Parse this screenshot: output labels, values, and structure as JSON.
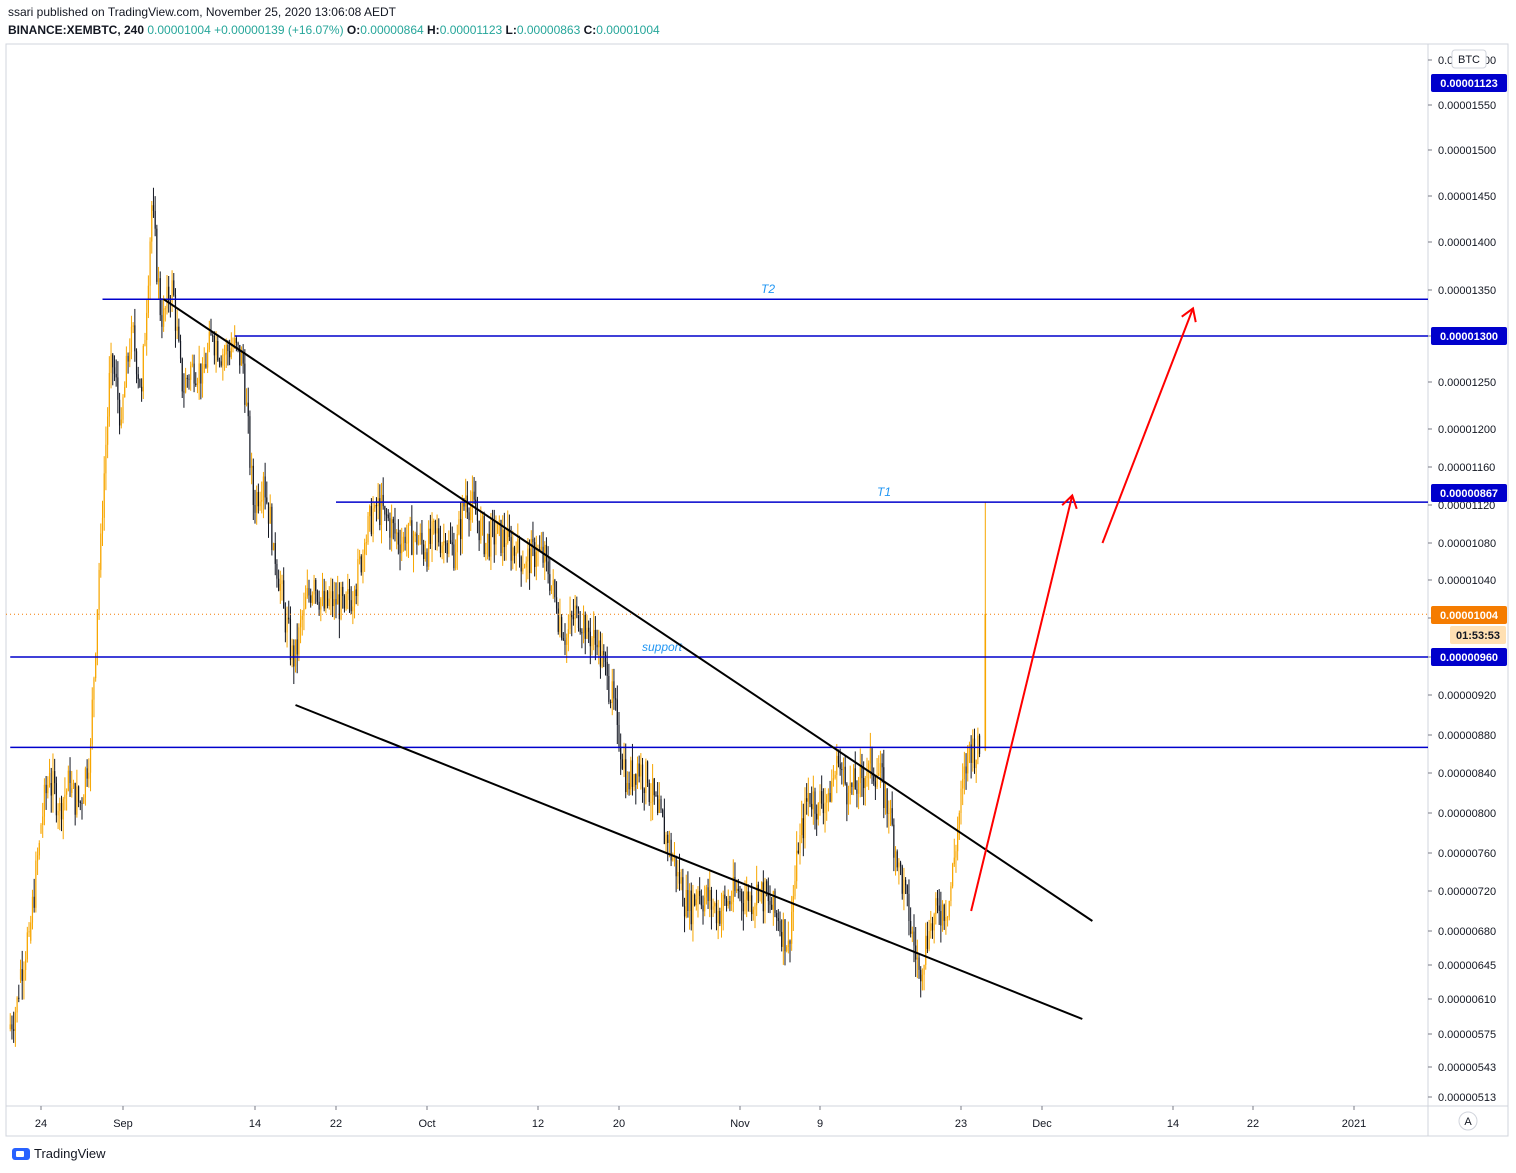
{
  "header": {
    "published": "ssari published on TradingView.com, November 25, 2020 13:06:08 AEDT",
    "symbol": "BINANCE:XEMBTC, 240",
    "last": "0.00001004",
    "change": "+0.00000139 (+16.07%)",
    "o_label": "O:",
    "o": "0.00000864",
    "h_label": "H:",
    "h": "0.00001123",
    "l_label": "L:",
    "l": "0.00000863",
    "c_label": "C:",
    "c": "0.00001004"
  },
  "currency_badge": "BTC",
  "auto_button": "A",
  "logo_text": "TradingView",
  "colors": {
    "up": "#f7a600",
    "down": "#131722",
    "level": "#0000cc",
    "price": "#f57c00",
    "arrow": "#ff0000"
  },
  "chart_data": {
    "type": "candlestick",
    "symbol": "BINANCE:XEMBTC",
    "interval": "240",
    "y_axis_ticks": [
      "0.00001600",
      "0.00001550",
      "0.00001500",
      "0.00001450",
      "0.00001400",
      "0.00001350",
      "0.00001300",
      "0.00001250",
      "0.00001200",
      "0.00001160",
      "0.00001120",
      "0.00001080",
      "0.00001040",
      "0.00001000",
      "0.00000960",
      "0.00000920",
      "0.00000880",
      "0.00000840",
      "0.00000800",
      "0.00000760",
      "0.00000720",
      "0.00000680",
      "0.00000645",
      "0.00000610",
      "0.00000575",
      "0.00000543",
      "0.00000513"
    ],
    "x_axis_ticks": [
      "24",
      "Sep",
      "14",
      "22",
      "Oct",
      "12",
      "20",
      "Nov",
      "9",
      "23",
      "Dec",
      "14",
      "22",
      "2021"
    ],
    "x_tick_dates": [
      "2020-08-24",
      "2020-09-01",
      "2020-09-14",
      "2020-09-22",
      "2020-10-01",
      "2020-10-12",
      "2020-10-20",
      "2020-11-01",
      "2020-11-09",
      "2020-11-23",
      "2020-12-01",
      "2020-12-14",
      "2020-12-22",
      "2021-01-01"
    ],
    "price_labels": [
      {
        "text": "0.00001123",
        "type": "level"
      },
      {
        "text": "0.00001300",
        "type": "level"
      },
      {
        "text": "0.00000867",
        "type": "level"
      },
      {
        "text": "0.00001004",
        "type": "price"
      },
      {
        "text": "01:53:53",
        "type": "countdown"
      },
      {
        "text": "0.00000960",
        "type": "level"
      }
    ],
    "horizontal_levels": [
      {
        "price": 1.34e-05,
        "label": "T2",
        "start": "2020-08-30"
      },
      {
        "price": 1.3e-05,
        "label": "",
        "start": "2020-09-12"
      },
      {
        "price": 1.123e-05,
        "label": "T1",
        "start": "2020-09-22"
      },
      {
        "price": 9.6e-06,
        "label": "support",
        "start": "2020-08-21"
      },
      {
        "price": 8.67e-06,
        "label": "",
        "start": "2020-08-21"
      }
    ],
    "trendlines": [
      {
        "from": [
          "2020-09-05",
          1.34e-05
        ],
        "to": [
          "2020-12-06",
          6.9e-06
        ]
      },
      {
        "from": [
          "2020-09-18",
          9.1e-06
        ],
        "to": [
          "2020-12-05",
          5.9e-06
        ]
      }
    ],
    "arrows": [
      {
        "from": [
          "2020-11-24",
          7e-06
        ],
        "to": [
          "2020-12-04",
          1.13e-05
        ]
      },
      {
        "from": [
          "2020-12-07",
          1.08e-05
        ],
        "to": [
          "2020-12-16",
          1.33e-05
        ]
      }
    ],
    "last_price": 1.004e-05,
    "candles": [
      [
        "2020-08-21",
        5.8e-06,
        6.1e-06
      ],
      [
        "2020-08-22",
        6.3e-06,
        6.8e-06
      ],
      [
        "2020-08-23",
        6.7e-06,
        7.7e-06
      ],
      [
        "2020-08-24",
        7.8e-06,
        8.4e-06
      ],
      [
        "2020-08-25",
        8.3e-06,
        8.1e-06
      ],
      [
        "2020-08-26",
        8.1e-06,
        8.3e-06
      ],
      [
        "2020-08-27",
        8.2e-06,
        8.1e-06
      ],
      [
        "2020-08-28",
        8.1e-06,
        8.7e-06
      ],
      [
        "2020-08-29",
        8.7e-06,
        1.09e-05
      ],
      [
        "2020-08-30",
        1.09e-05,
        1.28e-05
      ],
      [
        "2020-08-31",
        1.28e-05,
        1.21e-05
      ],
      [
        "2020-09-01",
        1.21e-05,
        1.31e-05
      ],
      [
        "2020-09-02",
        1.31e-05,
        1.24e-05
      ],
      [
        "2020-09-03",
        1.24e-05,
        1.44e-05
      ],
      [
        "2020-09-04",
        1.44e-05,
        1.31e-05
      ],
      [
        "2020-09-05",
        1.31e-05,
        1.36e-05
      ],
      [
        "2020-09-06",
        1.36e-05,
        1.24e-05
      ],
      [
        "2020-09-07",
        1.24e-05,
        1.27e-05
      ],
      [
        "2020-09-08",
        1.27e-05,
        1.26e-05
      ],
      [
        "2020-09-09",
        1.26e-05,
        1.3e-05
      ],
      [
        "2020-09-10",
        1.3e-05,
        1.28e-05
      ],
      [
        "2020-09-11",
        1.28e-05,
        1.29e-05
      ],
      [
        "2020-09-12",
        1.29e-05,
        1.27e-05
      ],
      [
        "2020-09-13",
        1.27e-05,
        1.12e-05
      ],
      [
        "2020-09-14",
        1.12e-05,
        1.15e-05
      ],
      [
        "2020-09-15",
        1.15e-05,
        1.08e-05
      ],
      [
        "2020-09-16",
        1.08e-05,
        1.01e-05
      ],
      [
        "2020-09-17",
        1.01e-05,
        9.5e-06
      ],
      [
        "2020-09-18",
        9.5e-06,
        1.01e-05
      ],
      [
        "2020-09-19",
        1.01e-05,
        1.04e-05
      ],
      [
        "2020-09-20",
        1.04e-05,
        1.01e-05
      ],
      [
        "2020-09-21",
        1.01e-05,
        1.02e-05
      ],
      [
        "2020-09-22",
        1.02e-05,
        1.01e-05
      ],
      [
        "2020-09-23",
        1.01e-05,
        1.03e-05
      ],
      [
        "2020-09-24",
        1.03e-05,
        1.08e-05
      ],
      [
        "2020-09-25",
        1.08e-05,
        1.12e-05
      ],
      [
        "2020-09-26",
        1.12e-05,
        1.11e-05
      ],
      [
        "2020-09-27",
        1.11e-05,
        1.09e-05
      ],
      [
        "2020-09-28",
        1.09e-05,
        1.08e-05
      ],
      [
        "2020-09-29",
        1.08e-05,
        1.09e-05
      ],
      [
        "2020-09-30",
        1.09e-05,
        1.07e-05
      ],
      [
        "2020-10-01",
        1.07e-05,
        1.09e-05
      ],
      [
        "2020-10-02",
        1.09e-05,
        1.08e-05
      ],
      [
        "2020-10-03",
        1.08e-05,
        1.07e-05
      ],
      [
        "2020-10-04",
        1.07e-05,
        1.13e-05
      ],
      [
        "2020-10-05",
        1.13e-05,
        1.11e-05
      ],
      [
        "2020-10-06",
        1.11e-05,
        1.08e-05
      ],
      [
        "2020-10-07",
        1.08e-05,
        1.09e-05
      ],
      [
        "2020-10-08",
        1.09e-05,
        1.08e-05
      ],
      [
        "2020-10-09",
        1.08e-05,
        1.07e-05
      ],
      [
        "2020-10-10",
        1.07e-05,
        1.06e-05
      ],
      [
        "2020-10-11",
        1.06e-05,
        1.07e-05
      ],
      [
        "2020-10-12",
        1.07e-05,
        1.06e-05
      ],
      [
        "2020-10-13",
        1.06e-05,
        1.01e-05
      ],
      [
        "2020-10-14",
        1.01e-05,
        9.8e-06
      ],
      [
        "2020-10-15",
        9.8e-06,
        1.01e-05
      ],
      [
        "2020-10-16",
        1.01e-05,
        9.9e-06
      ],
      [
        "2020-10-17",
        9.9e-06,
        9.7e-06
      ],
      [
        "2020-10-18",
        9.7e-06,
        9.4e-06
      ],
      [
        "2020-10-19",
        9.4e-06,
        8.9e-06
      ],
      [
        "2020-10-20",
        8.9e-06,
        8.3e-06
      ],
      [
        "2020-10-21",
        8.3e-06,
        8.5e-06
      ],
      [
        "2020-10-22",
        8.5e-06,
        8.3e-06
      ],
      [
        "2020-10-23",
        8.3e-06,
        8e-06
      ],
      [
        "2020-10-24",
        8e-06,
        7.7e-06
      ],
      [
        "2020-10-25",
        7.7e-06,
        7.4e-06
      ],
      [
        "2020-10-26",
        7.4e-06,
        7e-06
      ],
      [
        "2020-10-27",
        7e-06,
        7.2e-06
      ],
      [
        "2020-10-28",
        7.2e-06,
        7.1e-06
      ],
      [
        "2020-10-29",
        7.1e-06,
        7e-06
      ],
      [
        "2020-10-30",
        7e-06,
        7.1e-06
      ],
      [
        "2020-10-31",
        7.1e-06,
        7.2e-06
      ],
      [
        "2020-11-01",
        7.2e-06,
        7.1e-06
      ],
      [
        "2020-11-02",
        7.1e-06,
        7.2e-06
      ],
      [
        "2020-11-03",
        7.2e-06,
        7.1e-06
      ],
      [
        "2020-11-04",
        7.1e-06,
        6.9e-06
      ],
      [
        "2020-11-05",
        6.9e-06,
        6.7e-06
      ],
      [
        "2020-11-06",
        6.7e-06,
        7.6e-06
      ],
      [
        "2020-11-07",
        7.6e-06,
        8.2e-06
      ],
      [
        "2020-11-08",
        8.2e-06,
        8.1e-06
      ],
      [
        "2020-11-09",
        8.1e-06,
        8.2e-06
      ],
      [
        "2020-11-10",
        8.2e-06,
        8.5e-06
      ],
      [
        "2020-11-11",
        8.5e-06,
        8.2e-06
      ],
      [
        "2020-11-12",
        8.2e-06,
        8.3e-06
      ],
      [
        "2020-11-13",
        8.3e-06,
        8.5e-06
      ],
      [
        "2020-11-14",
        8.5e-06,
        8.4e-06
      ],
      [
        "2020-11-15",
        8.4e-06,
        8e-06
      ],
      [
        "2020-11-16",
        8e-06,
        7.5e-06
      ],
      [
        "2020-11-17",
        7.5e-06,
        6.9e-06
      ],
      [
        "2020-11-18",
        6.9e-06,
        6.4e-06
      ],
      [
        "2020-11-19",
        6.4e-06,
        6.8e-06
      ],
      [
        "2020-11-20",
        6.8e-06,
        7e-06
      ],
      [
        "2020-11-21",
        7e-06,
        7.1e-06
      ],
      [
        "2020-11-22",
        7.1e-06,
        8e-06
      ],
      [
        "2020-11-23",
        8e-06,
        8.7e-06
      ],
      [
        "2020-11-24",
        8.7e-06,
        8.6e-06
      ],
      [
        "2020-11-25",
        8.6e-06,
        1.004e-05
      ]
    ]
  }
}
